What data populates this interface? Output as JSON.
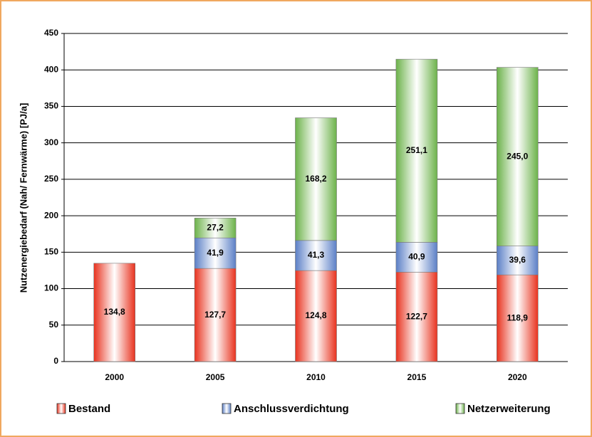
{
  "chart_data": {
    "type": "stacked_bar",
    "y_axis_label": "Nutzenergiebedarf (Nah/ Fernwärme) [PJ/a]",
    "categories": [
      "2000",
      "2005",
      "2010",
      "2015",
      "2020"
    ],
    "series": [
      {
        "name": "Bestand",
        "color": "#e8321e",
        "values": [
          134.8,
          127.7,
          124.8,
          122.7,
          118.9
        ],
        "value_labels": [
          "134,8",
          "127,7",
          "124,8",
          "122,7",
          "118,9"
        ]
      },
      {
        "name": "Anschlussverdichtung",
        "color": "#5b7fc6",
        "values": [
          null,
          41.9,
          41.3,
          40.9,
          39.6
        ],
        "value_labels": [
          null,
          "41,9",
          "41,3",
          "40,9",
          "39,6"
        ]
      },
      {
        "name": "Netzerweiterung",
        "color": "#6cb24a",
        "values": [
          null,
          27.2,
          168.2,
          251.1,
          245.0
        ],
        "value_labels": [
          null,
          "27,2",
          "168,2",
          "251,1",
          "245,0"
        ]
      }
    ],
    "ylim": [
      0,
      450
    ],
    "yticks": [
      0,
      50,
      100,
      150,
      200,
      250,
      300,
      350,
      400,
      450
    ],
    "grid": true
  }
}
